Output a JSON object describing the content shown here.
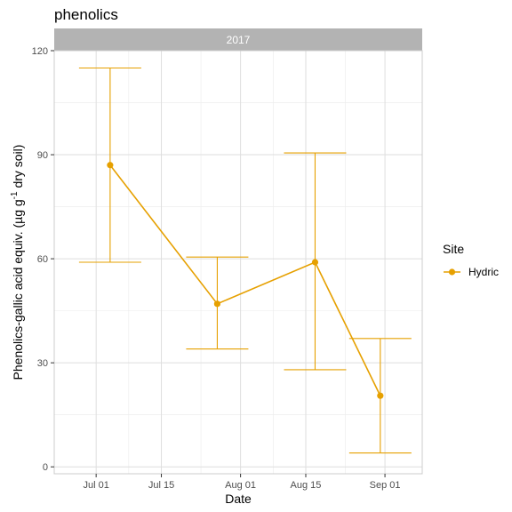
{
  "chart_data": {
    "type": "line",
    "title": "phenolics",
    "facet_label": "2017",
    "xlabel": "Date",
    "ylabel_main": "Phenolics-gallic acid equiv. (µg g",
    "ylabel_sup": "-1",
    "ylabel_tail": " dry soil)",
    "x_ticks": [
      "2017-07-01",
      "2017-07-15",
      "2017-08-01",
      "2017-08-15",
      "2017-09-01"
    ],
    "x_tick_labels": [
      "Jul 01",
      "Jul 15",
      "Aug 01",
      "Aug 15",
      "Sep 01"
    ],
    "xlim": [
      "2017-06-22",
      "2017-09-09"
    ],
    "y_ticks": [
      0,
      30,
      60,
      90,
      120
    ],
    "y_tick_labels": [
      "0",
      "30",
      "60",
      "90",
      "120"
    ],
    "ylim": [
      -2,
      120
    ],
    "grid": true,
    "legend": {
      "title": "Site",
      "position": "right"
    },
    "series": [
      {
        "name": "Hydric",
        "color": "#E6A000",
        "points": [
          {
            "x": "2017-07-04",
            "y": 87,
            "ymin": 59,
            "ymax": 115
          },
          {
            "x": "2017-07-27",
            "y": 47,
            "ymin": 34,
            "ymax": 60.5
          },
          {
            "x": "2017-08-17",
            "y": 59,
            "ymin": 28,
            "ymax": 90.5
          },
          {
            "x": "2017-08-31",
            "y": 20.5,
            "ymin": 4,
            "ymax": 37
          }
        ]
      }
    ]
  }
}
